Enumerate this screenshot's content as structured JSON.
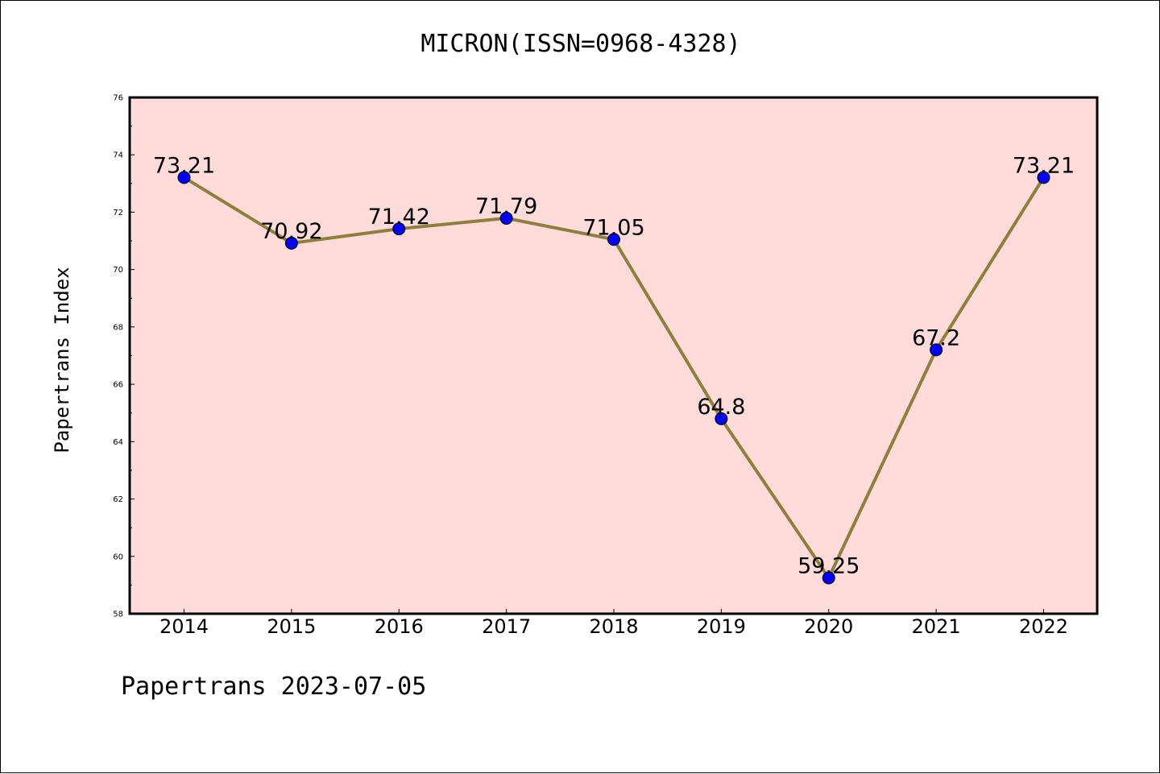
{
  "chart_data": {
    "type": "line",
    "title": "MICRON(ISSN=0968-4328)",
    "ylabel": "Papertrans Index",
    "xlabel": "",
    "footer": "Papertrans 2023-07-05",
    "categories": [
      "2014",
      "2015",
      "2016",
      "2017",
      "2018",
      "2019",
      "2020",
      "2021",
      "2022"
    ],
    "series": [
      {
        "values": [
          73.21,
          70.92,
          71.42,
          71.79,
          71.05,
          64.8,
          59.25,
          67.2,
          73.21
        ],
        "labels": [
          "73.21",
          "70.92",
          "71.42",
          "71.79",
          "71.05",
          "64.8",
          "59.25",
          "67.2",
          "73.21"
        ]
      }
    ],
    "ylim": [
      58,
      76
    ],
    "yticks": [
      "58",
      "60",
      "62",
      "64",
      "66",
      "68",
      "70",
      "72",
      "74",
      "76"
    ],
    "grid": false,
    "colors": {
      "plot_background": "#ffdcd9",
      "line": "#8e7f3c",
      "marker": "#0000ff"
    }
  }
}
